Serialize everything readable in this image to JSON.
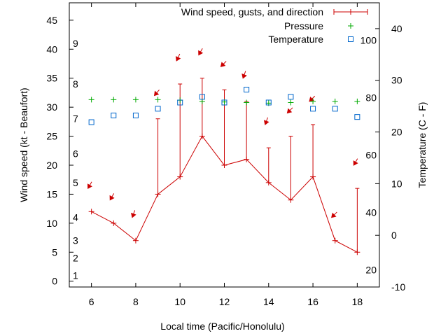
{
  "chart_data": {
    "type": "line",
    "title": "",
    "xlabel": "Local time (Pacific/Honolulu)",
    "ylabel": "Wind speed (kt - Beaufort)",
    "y2label": "Temperature (C - F)",
    "xlim": [
      5,
      19
    ],
    "ylim": [
      -1,
      48
    ],
    "y2lim": [
      -10,
      45
    ],
    "x_ticks": [
      6,
      8,
      10,
      12,
      14,
      16,
      18
    ],
    "y_ticks": [
      0,
      5,
      10,
      15,
      20,
      25,
      30,
      35,
      40,
      45
    ],
    "y2_ticks": [
      -10,
      0,
      10,
      20,
      30,
      40
    ],
    "beaufort_labels": [
      {
        "label": "1",
        "kt": 1
      },
      {
        "label": "2",
        "kt": 4
      },
      {
        "label": "3",
        "kt": 7
      },
      {
        "label": "4",
        "kt": 11
      },
      {
        "label": "5",
        "kt": 17
      },
      {
        "label": "6",
        "kt": 22
      },
      {
        "label": "7",
        "kt": 28
      },
      {
        "label": "8",
        "kt": 34
      },
      {
        "label": "9",
        "kt": 41
      }
    ],
    "fahrenheit_labels": [
      {
        "label": "20",
        "f": 20
      },
      {
        "label": "40",
        "f": 40
      },
      {
        "label": "60",
        "f": 60
      },
      {
        "label": "80",
        "f": 80
      },
      {
        "label": "100",
        "f": 100
      }
    ],
    "legend": {
      "position": "top-right",
      "entries": [
        "Wind speed, gusts, and direction",
        "Pressure",
        "Temperature"
      ]
    },
    "series": [
      {
        "name": "Wind speed, gusts, and direction",
        "color": "#cc0000",
        "x": [
          6,
          7,
          8,
          9,
          10,
          11,
          12,
          13,
          14,
          15,
          16,
          17,
          18
        ],
        "values": [
          12,
          10,
          7,
          15,
          18,
          25,
          20,
          21,
          17,
          14,
          18,
          7,
          5
        ],
        "gusts": [
          12,
          10,
          7,
          28,
          34,
          35,
          33,
          31,
          23,
          25,
          27,
          7,
          16
        ],
        "direction_arrow_kt": [
          16,
          14,
          11,
          32,
          38,
          39,
          37,
          35,
          27,
          29,
          31,
          11,
          20
        ],
        "direction_deg": [
          60,
          60,
          70,
          50,
          65,
          60,
          45,
          70,
          70,
          45,
          45,
          45,
          60
        ]
      },
      {
        "name": "Pressure",
        "color": "#00aa00",
        "x": [
          6,
          7,
          8,
          9,
          10,
          11,
          12,
          13,
          14,
          15,
          16,
          17,
          18
        ],
        "values": [
          31.3,
          31.3,
          31.3,
          31.3,
          31.2,
          31.0,
          30.9,
          30.8,
          30.7,
          30.8,
          31.0,
          31.0,
          31.0
        ]
      },
      {
        "name": "Temperature",
        "color": "#0066cc",
        "x": [
          6,
          7,
          8,
          9,
          10,
          11,
          12,
          13,
          14,
          15,
          16,
          17,
          18
        ],
        "values": [
          21.9,
          23.2,
          23.2,
          24.5,
          25.7,
          26.8,
          25.7,
          28.2,
          25.7,
          26.8,
          24.5,
          24.5,
          22.9
        ]
      }
    ]
  }
}
